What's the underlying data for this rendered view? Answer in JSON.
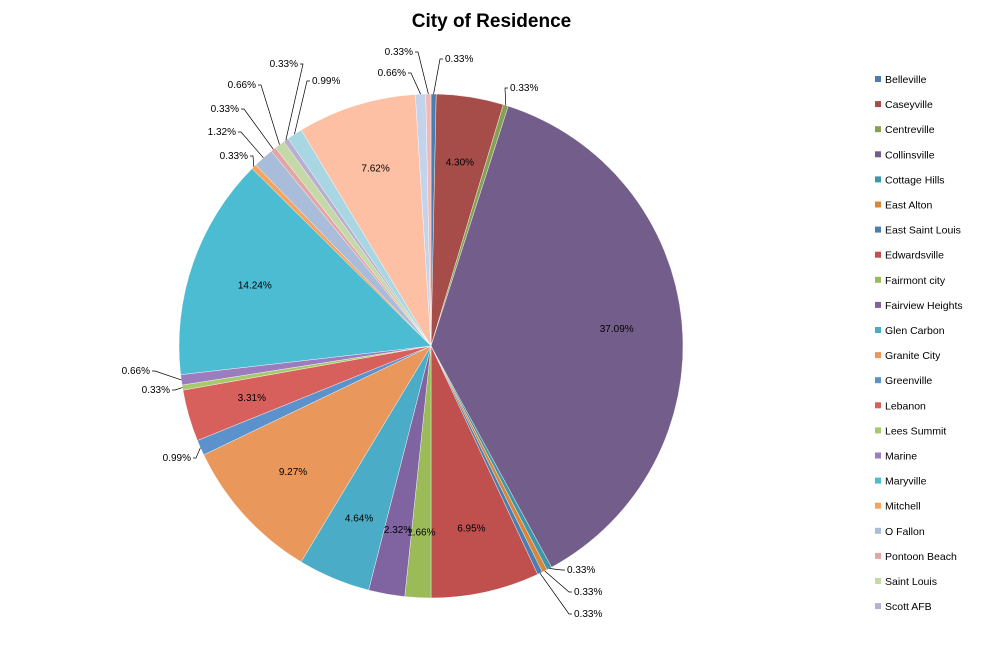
{
  "chart_data": {
    "type": "pie",
    "title": "City of Residence",
    "legend_position": "right",
    "slices": [
      {
        "name": "Belleville",
        "value": 0.33,
        "label": "0.33%",
        "color": "#4a7eb0"
      },
      {
        "name": "Caseyville",
        "value": 4.3,
        "label": "4.30%",
        "color": "#a64d4a"
      },
      {
        "name": "Centreville",
        "value": 0.33,
        "label": "0.33%",
        "color": "#86a153"
      },
      {
        "name": "Collinsville",
        "value": 37.09,
        "label": "37.09%",
        "color": "#735e8b"
      },
      {
        "name": "Cottage Hills",
        "value": 0.33,
        "label": "0.33%",
        "color": "#3d97a9"
      },
      {
        "name": "East Alton",
        "value": 0.33,
        "label": "0.33%",
        "color": "#d9853a"
      },
      {
        "name": "East Saint Louis",
        "value": 0.33,
        "label": "0.33%",
        "color": "#4a7eb0"
      },
      {
        "name": "Edwardsville",
        "value": 6.95,
        "label": "6.95%",
        "color": "#c0504d"
      },
      {
        "name": "Fairmont city",
        "value": 1.66,
        "label": "1.66%",
        "color": "#9bbb59"
      },
      {
        "name": "Fairview Heights",
        "value": 2.32,
        "label": "2.32%",
        "color": "#8064a2"
      },
      {
        "name": "Glen Carbon",
        "value": 4.64,
        "label": "4.64%",
        "color": "#4aacc6"
      },
      {
        "name": "Granite City",
        "value": 9.27,
        "label": "9.27%",
        "color": "#e9975a"
      },
      {
        "name": "Greenville",
        "value": 0.99,
        "label": "0.99%",
        "color": "#5b92cc"
      },
      {
        "name": "Lebanon",
        "value": 3.31,
        "label": "3.31%",
        "color": "#d75f5c"
      },
      {
        "name": "Lees Summit",
        "value": 0.33,
        "label": "0.33%",
        "color": "#a6c96a"
      },
      {
        "name": "Marine",
        "value": 0.66,
        "label": "0.66%",
        "color": "#9a7cbf"
      },
      {
        "name": "Maryville",
        "value": 14.24,
        "label": "14.24%",
        "color": "#4bbcd1"
      },
      {
        "name": "Mitchell",
        "value": 0.33,
        "label": "0.33%",
        "color": "#f7a35c"
      },
      {
        "name": "O Fallon",
        "value": 1.32,
        "label": "1.32%",
        "color": "#a9bcd9"
      },
      {
        "name": "Pontoon Beach",
        "value": 0.33,
        "label": "0.33%",
        "color": "#e3a6a5"
      },
      {
        "name": "Saint Louis",
        "value": 0.66,
        "label": "0.66%",
        "color": "#c5d8a8"
      },
      {
        "name": "Scott AFB",
        "value": 0.33,
        "label": "0.33%",
        "color": "#b7aed0"
      },
      {
        "name": "",
        "value": 0.99,
        "label": "0.99%",
        "color": "#a8d6e3"
      },
      {
        "name": "",
        "value": 7.62,
        "label": "7.62%",
        "color": "#fdc0a4"
      },
      {
        "name": "",
        "value": 0.66,
        "label": "0.66%",
        "color": "#c3d3ec"
      },
      {
        "name": "",
        "value": 0.33,
        "label": "0.33%",
        "color": "#eeb9b8"
      }
    ]
  }
}
